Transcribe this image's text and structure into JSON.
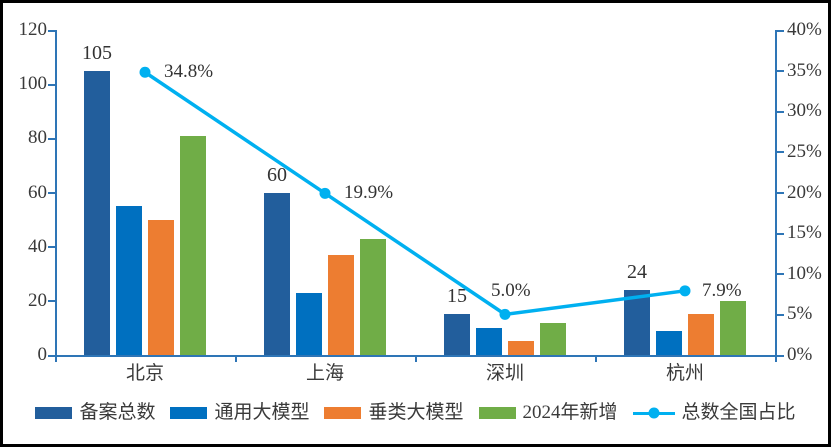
{
  "chart_data": {
    "type": "bar+line",
    "categories": [
      "北京",
      "上海",
      "深圳",
      "杭州"
    ],
    "bar_series": [
      {
        "name": "备案总数",
        "color": "#225E9C",
        "values": [
          105,
          60,
          15,
          24
        ]
      },
      {
        "name": "通用大模型",
        "color": "#0070C0",
        "values": [
          55,
          23,
          10,
          9
        ]
      },
      {
        "name": "垂类大模型",
        "color": "#ED7D31",
        "values": [
          50,
          37,
          5,
          15
        ]
      },
      {
        "name": "2024年新增",
        "color": "#70AD47",
        "values": [
          81,
          43,
          12,
          20
        ]
      }
    ],
    "bar_value_labels": [
      "105",
      "60",
      "15",
      "24"
    ],
    "line_series": {
      "name": "总数全国占比",
      "color": "#00B0F0",
      "values": [
        34.8,
        19.9,
        5.0,
        7.9
      ],
      "labels": [
        "34.8%",
        "19.9%",
        "5.0%",
        "7.9%"
      ]
    },
    "left_axis": {
      "min": 0,
      "max": 120,
      "ticks": [
        "0",
        "20",
        "40",
        "60",
        "80",
        "100",
        "120"
      ]
    },
    "right_axis": {
      "min": 0,
      "max": 40,
      "ticks": [
        "0%",
        "5%",
        "10%",
        "15%",
        "20%",
        "25%",
        "30%",
        "35%",
        "40%"
      ]
    },
    "axis_color": "#2E75B6",
    "grid": false,
    "legend_position": "bottom"
  }
}
